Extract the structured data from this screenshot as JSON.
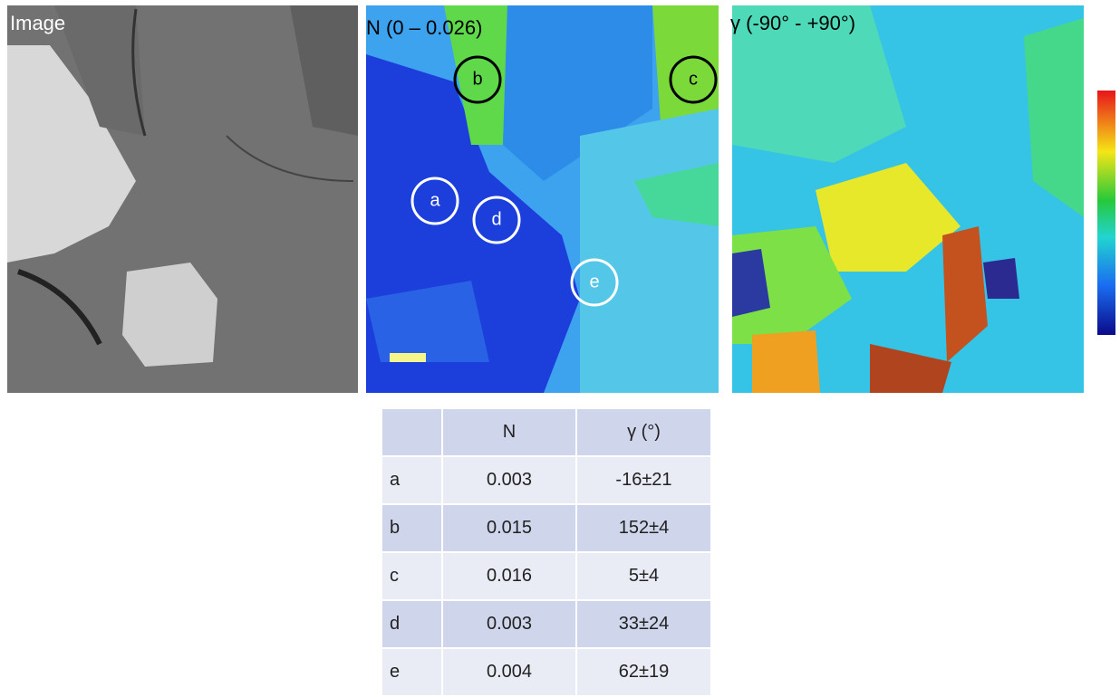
{
  "panels": [
    {
      "label": "Image"
    },
    {
      "label": "N (0 – 0.026)"
    },
    {
      "label": "γ (-90° - +90°)"
    }
  ],
  "table": {
    "columns": [
      "N",
      "γ (°)"
    ],
    "rows": [
      {
        "label": "a",
        "n": 0.003,
        "gamma": "-16±21"
      },
      {
        "label": "b",
        "n": 0.015,
        "gamma": "152±4"
      },
      {
        "label": "c",
        "n": 0.016,
        "gamma": "5±4"
      },
      {
        "label": "d",
        "n": 0.003,
        "gamma": "33±24"
      },
      {
        "label": "e",
        "n": 0.004,
        "gamma": "62±19"
      }
    ]
  }
}
